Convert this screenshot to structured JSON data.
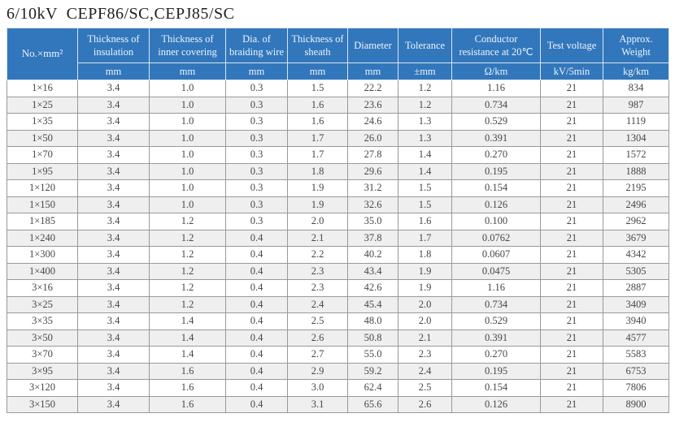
{
  "title": "6/10kV  CEPF86/SC,CEPJ85/SC",
  "colors": {
    "header_bg": "#3277bc",
    "header_text": "#eef4fb",
    "header_border": "#d9e5f2",
    "body_border": "#999999",
    "body_text": "#474747",
    "row_alt_bg": "#efefef",
    "title_text": "#1f1f1f"
  },
  "table": {
    "corner_label": "No.×mm²",
    "columns": [
      {
        "label": "Thickness of insulation",
        "unit": "mm"
      },
      {
        "label": "Thickness of inner covering",
        "unit": "mm"
      },
      {
        "label": "Dia. of braiding wire",
        "unit": "mm"
      },
      {
        "label": "Thickness of sheath",
        "unit": "mm"
      },
      {
        "label": "Diameter",
        "unit": "mm"
      },
      {
        "label": "Tolerance",
        "unit": "±mm"
      },
      {
        "label": "Conductor resistance at 20℃",
        "unit": "Ω/km"
      },
      {
        "label": "Test voltage",
        "unit": "kV/5min"
      },
      {
        "label": "Approx. Weight",
        "unit": "kg/km"
      }
    ],
    "rows": [
      [
        "1×16",
        "3.4",
        "1.0",
        "0.3",
        "1.5",
        "22.2",
        "1.2",
        "1.16",
        "21",
        "834"
      ],
      [
        "1×25",
        "3.4",
        "1.0",
        "0.3",
        "1.6",
        "23.6",
        "1.2",
        "0.734",
        "21",
        "987"
      ],
      [
        "1×35",
        "3.4",
        "1.0",
        "0.3",
        "1.6",
        "24.6",
        "1.3",
        "0.529",
        "21",
        "1119"
      ],
      [
        "1×50",
        "3.4",
        "1.0",
        "0.3",
        "1.7",
        "26.0",
        "1.3",
        "0.391",
        "21",
        "1304"
      ],
      [
        "1×70",
        "3.4",
        "1.0",
        "0.3",
        "1.7",
        "27.8",
        "1.4",
        "0.270",
        "21",
        "1572"
      ],
      [
        "1×95",
        "3.4",
        "1.0",
        "0.3",
        "1.8",
        "29.6",
        "1.4",
        "0.195",
        "21",
        "1888"
      ],
      [
        "1×120",
        "3.4",
        "1.0",
        "0.3",
        "1.9",
        "31.2",
        "1.5",
        "0.154",
        "21",
        "2195"
      ],
      [
        "1×150",
        "3.4",
        "1.0",
        "0.3",
        "1.9",
        "32.6",
        "1.5",
        "0.126",
        "21",
        "2496"
      ],
      [
        "1×185",
        "3.4",
        "1.2",
        "0.3",
        "2.0",
        "35.0",
        "1.6",
        "0.100",
        "21",
        "2962"
      ],
      [
        "1×240",
        "3.4",
        "1.2",
        "0.4",
        "2.1",
        "37.8",
        "1.7",
        "0.0762",
        "21",
        "3679"
      ],
      [
        "1×300",
        "3.4",
        "1.2",
        "0.4",
        "2.2",
        "40.2",
        "1.8",
        "0.0607",
        "21",
        "4342"
      ],
      [
        "1×400",
        "3.4",
        "1.2",
        "0.4",
        "2.3",
        "43.4",
        "1.9",
        "0.0475",
        "21",
        "5305"
      ],
      [
        "3×16",
        "3.4",
        "1.2",
        "0.4",
        "2.3",
        "42.6",
        "1.9",
        "1.16",
        "21",
        "2887"
      ],
      [
        "3×25",
        "3.4",
        "1.2",
        "0.4",
        "2.4",
        "45.4",
        "2.0",
        "0.734",
        "21",
        "3409"
      ],
      [
        "3×35",
        "3.4",
        "1.4",
        "0.4",
        "2.5",
        "48.0",
        "2.0",
        "0.529",
        "21",
        "3940"
      ],
      [
        "3×50",
        "3.4",
        "1.4",
        "0.4",
        "2.6",
        "50.8",
        "2.1",
        "0.391",
        "21",
        "4577"
      ],
      [
        "3×70",
        "3.4",
        "1.4",
        "0.4",
        "2.7",
        "55.0",
        "2.3",
        "0.270",
        "21",
        "5583"
      ],
      [
        "3×95",
        "3.4",
        "1.6",
        "0.4",
        "2.9",
        "59.2",
        "2.4",
        "0.195",
        "21",
        "6753"
      ],
      [
        "3×120",
        "3.4",
        "1.6",
        "0.4",
        "3.0",
        "62.4",
        "2.5",
        "0.154",
        "21",
        "7806"
      ],
      [
        "3×150",
        "3.4",
        "1.6",
        "0.4",
        "3.1",
        "65.6",
        "2.6",
        "0.126",
        "21",
        "8900"
      ]
    ]
  }
}
